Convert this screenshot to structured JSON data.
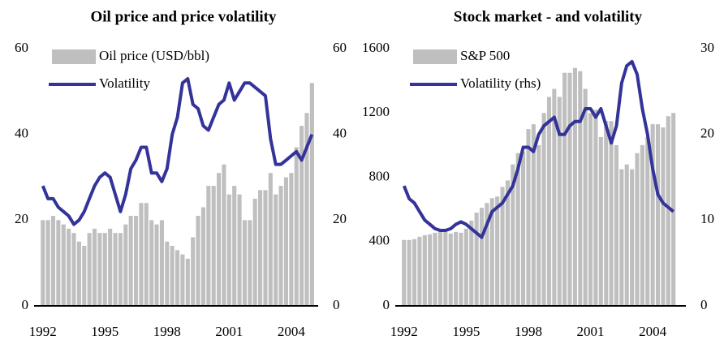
{
  "chart_data": [
    {
      "type": "bar_line",
      "title": "Oil price and price volatility",
      "x": [
        1992,
        1992.25,
        1992.5,
        1992.75,
        1993,
        1993.25,
        1993.5,
        1993.75,
        1994,
        1994.25,
        1994.5,
        1994.75,
        1995,
        1995.25,
        1995.5,
        1995.75,
        1996,
        1996.25,
        1996.5,
        1996.75,
        1997,
        1997.25,
        1997.5,
        1997.75,
        1998,
        1998.25,
        1998.5,
        1998.75,
        1999,
        1999.25,
        1999.5,
        1999.75,
        2000,
        2000.25,
        2000.5,
        2000.75,
        2001,
        2001.25,
        2001.5,
        2001.75,
        2002,
        2002.25,
        2002.5,
        2002.75,
        2003,
        2003.25,
        2003.5,
        2003.75,
        2004,
        2004.25,
        2004.5,
        2004.75,
        2005
      ],
      "series": [
        {
          "name": "Oil price (USD/bbl)",
          "color": "#bfbfbf",
          "kind": "bar",
          "axis": "y",
          "values": [
            20,
            20,
            21,
            20,
            19,
            18,
            17,
            15,
            14,
            17,
            18,
            17,
            17,
            18,
            17,
            17,
            19,
            21,
            21,
            24,
            24,
            20,
            19,
            20,
            15,
            14,
            13,
            12,
            11,
            16,
            21,
            23,
            28,
            28,
            31,
            33,
            26,
            28,
            26,
            20,
            20,
            25,
            27,
            27,
            31,
            26,
            28,
            30,
            31,
            37,
            42,
            45,
            52
          ]
        },
        {
          "name": "Volatility",
          "color": "#333399",
          "kind": "line",
          "axis": "y2",
          "values": [
            28,
            25,
            25,
            23,
            22,
            21,
            19,
            20,
            22,
            25,
            28,
            30,
            31,
            30,
            26,
            22,
            26,
            32,
            34,
            37,
            37,
            31,
            31,
            29,
            32,
            40,
            44,
            52,
            53,
            47,
            46,
            42,
            41,
            44,
            47,
            48,
            52,
            48,
            50,
            52,
            52,
            51,
            50,
            49,
            39,
            33,
            33,
            34,
            35,
            36,
            34,
            37,
            40
          ]
        }
      ],
      "xlim": [
        1991.5,
        2005.3
      ],
      "xticks": [
        1992,
        1995,
        1998,
        2001,
        2004
      ],
      "ylim": [
        0,
        60
      ],
      "yticks": [
        0,
        20,
        40,
        60
      ],
      "y2lim": [
        0,
        60
      ],
      "y2ticks": [
        0,
        20,
        40,
        60
      ]
    },
    {
      "type": "bar_line",
      "title": "Stock market - and volatility",
      "x": [
        1992,
        1992.25,
        1992.5,
        1992.75,
        1993,
        1993.25,
        1993.5,
        1993.75,
        1994,
        1994.25,
        1994.5,
        1994.75,
        1995,
        1995.25,
        1995.5,
        1995.75,
        1996,
        1996.25,
        1996.5,
        1996.75,
        1997,
        1997.25,
        1997.5,
        1997.75,
        1998,
        1998.25,
        1998.5,
        1998.75,
        1999,
        1999.25,
        1999.5,
        1999.75,
        2000,
        2000.25,
        2000.5,
        2000.75,
        2001,
        2001.25,
        2001.5,
        2001.75,
        2002,
        2002.25,
        2002.5,
        2002.75,
        2003,
        2003.25,
        2003.5,
        2003.75,
        2004,
        2004.25,
        2004.5,
        2004.75,
        2005
      ],
      "series": [
        {
          "name": "S&P 500",
          "color": "#bfbfbf",
          "kind": "bar",
          "axis": "y",
          "values": [
            410,
            410,
            415,
            430,
            440,
            445,
            455,
            465,
            470,
            450,
            460,
            455,
            480,
            530,
            580,
            610,
            640,
            670,
            680,
            740,
            780,
            880,
            950,
            960,
            1100,
            1130,
            1000,
            1200,
            1300,
            1350,
            1300,
            1450,
            1450,
            1480,
            1460,
            1350,
            1200,
            1220,
            1050,
            1150,
            1150,
            1000,
            850,
            880,
            850,
            950,
            1000,
            1050,
            1130,
            1130,
            1110,
            1180,
            1200
          ]
        },
        {
          "name": "Volatility (rhs)",
          "color": "#333399",
          "kind": "line",
          "axis": "y2",
          "values": [
            14,
            12.5,
            12,
            11,
            10,
            9.5,
            9,
            8.8,
            8.8,
            9,
            9.5,
            9.8,
            9.5,
            9,
            8.5,
            8,
            9.5,
            11,
            11.5,
            12,
            13,
            14,
            16,
            18.5,
            18.5,
            18,
            20,
            21,
            21.5,
            22,
            20,
            20,
            21,
            21.5,
            21.5,
            23,
            23,
            22,
            23,
            21,
            19,
            21,
            26,
            28,
            28.5,
            27,
            23,
            20,
            16,
            13,
            12,
            11.5,
            11
          ]
        }
      ],
      "xlim": [
        1991.5,
        2005.6
      ],
      "xticks": [
        1992,
        1995,
        1998,
        2001,
        2004
      ],
      "ylim": [
        0,
        1600
      ],
      "yticks": [
        0,
        400,
        800,
        1200,
        1600
      ],
      "y2lim": [
        0,
        30
      ],
      "y2ticks": [
        0,
        10,
        20,
        30
      ]
    }
  ]
}
